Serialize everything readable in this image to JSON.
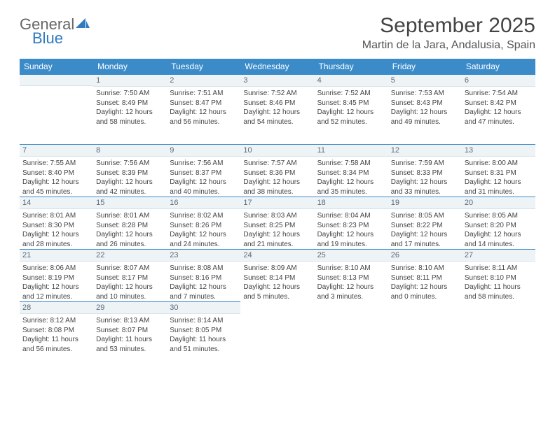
{
  "logo": {
    "general": "General",
    "blue": "Blue"
  },
  "title": "September 2025",
  "location": "Martin de la Jara, Andalusia, Spain",
  "colors": {
    "header_bg": "#3b8bc9",
    "header_text": "#ffffff",
    "daynum_bg": "#eef3f6",
    "daynum_border_top": "#3b8bc9",
    "text": "#444444"
  },
  "weekdays": [
    "Sunday",
    "Monday",
    "Tuesday",
    "Wednesday",
    "Thursday",
    "Friday",
    "Saturday"
  ],
  "weeks": [
    [
      null,
      {
        "n": "1",
        "sr": "7:50 AM",
        "ss": "8:49 PM",
        "dl": "12 hours and 58 minutes."
      },
      {
        "n": "2",
        "sr": "7:51 AM",
        "ss": "8:47 PM",
        "dl": "12 hours and 56 minutes."
      },
      {
        "n": "3",
        "sr": "7:52 AM",
        "ss": "8:46 PM",
        "dl": "12 hours and 54 minutes."
      },
      {
        "n": "4",
        "sr": "7:52 AM",
        "ss": "8:45 PM",
        "dl": "12 hours and 52 minutes."
      },
      {
        "n": "5",
        "sr": "7:53 AM",
        "ss": "8:43 PM",
        "dl": "12 hours and 49 minutes."
      },
      {
        "n": "6",
        "sr": "7:54 AM",
        "ss": "8:42 PM",
        "dl": "12 hours and 47 minutes."
      }
    ],
    [
      {
        "n": "7",
        "sr": "7:55 AM",
        "ss": "8:40 PM",
        "dl": "12 hours and 45 minutes."
      },
      {
        "n": "8",
        "sr": "7:56 AM",
        "ss": "8:39 PM",
        "dl": "12 hours and 42 minutes."
      },
      {
        "n": "9",
        "sr": "7:56 AM",
        "ss": "8:37 PM",
        "dl": "12 hours and 40 minutes."
      },
      {
        "n": "10",
        "sr": "7:57 AM",
        "ss": "8:36 PM",
        "dl": "12 hours and 38 minutes."
      },
      {
        "n": "11",
        "sr": "7:58 AM",
        "ss": "8:34 PM",
        "dl": "12 hours and 35 minutes."
      },
      {
        "n": "12",
        "sr": "7:59 AM",
        "ss": "8:33 PM",
        "dl": "12 hours and 33 minutes."
      },
      {
        "n": "13",
        "sr": "8:00 AM",
        "ss": "8:31 PM",
        "dl": "12 hours and 31 minutes."
      }
    ],
    [
      {
        "n": "14",
        "sr": "8:01 AM",
        "ss": "8:30 PM",
        "dl": "12 hours and 28 minutes."
      },
      {
        "n": "15",
        "sr": "8:01 AM",
        "ss": "8:28 PM",
        "dl": "12 hours and 26 minutes."
      },
      {
        "n": "16",
        "sr": "8:02 AM",
        "ss": "8:26 PM",
        "dl": "12 hours and 24 minutes."
      },
      {
        "n": "17",
        "sr": "8:03 AM",
        "ss": "8:25 PM",
        "dl": "12 hours and 21 minutes."
      },
      {
        "n": "18",
        "sr": "8:04 AM",
        "ss": "8:23 PM",
        "dl": "12 hours and 19 minutes."
      },
      {
        "n": "19",
        "sr": "8:05 AM",
        "ss": "8:22 PM",
        "dl": "12 hours and 17 minutes."
      },
      {
        "n": "20",
        "sr": "8:05 AM",
        "ss": "8:20 PM",
        "dl": "12 hours and 14 minutes."
      }
    ],
    [
      {
        "n": "21",
        "sr": "8:06 AM",
        "ss": "8:19 PM",
        "dl": "12 hours and 12 minutes."
      },
      {
        "n": "22",
        "sr": "8:07 AM",
        "ss": "8:17 PM",
        "dl": "12 hours and 10 minutes."
      },
      {
        "n": "23",
        "sr": "8:08 AM",
        "ss": "8:16 PM",
        "dl": "12 hours and 7 minutes."
      },
      {
        "n": "24",
        "sr": "8:09 AM",
        "ss": "8:14 PM",
        "dl": "12 hours and 5 minutes."
      },
      {
        "n": "25",
        "sr": "8:10 AM",
        "ss": "8:13 PM",
        "dl": "12 hours and 3 minutes."
      },
      {
        "n": "26",
        "sr": "8:10 AM",
        "ss": "8:11 PM",
        "dl": "12 hours and 0 minutes."
      },
      {
        "n": "27",
        "sr": "8:11 AM",
        "ss": "8:10 PM",
        "dl": "11 hours and 58 minutes."
      }
    ],
    [
      {
        "n": "28",
        "sr": "8:12 AM",
        "ss": "8:08 PM",
        "dl": "11 hours and 56 minutes."
      },
      {
        "n": "29",
        "sr": "8:13 AM",
        "ss": "8:07 PM",
        "dl": "11 hours and 53 minutes."
      },
      {
        "n": "30",
        "sr": "8:14 AM",
        "ss": "8:05 PM",
        "dl": "11 hours and 51 minutes."
      },
      null,
      null,
      null,
      null
    ]
  ],
  "labels": {
    "sunrise": "Sunrise:",
    "sunset": "Sunset:",
    "daylight": "Daylight:"
  }
}
